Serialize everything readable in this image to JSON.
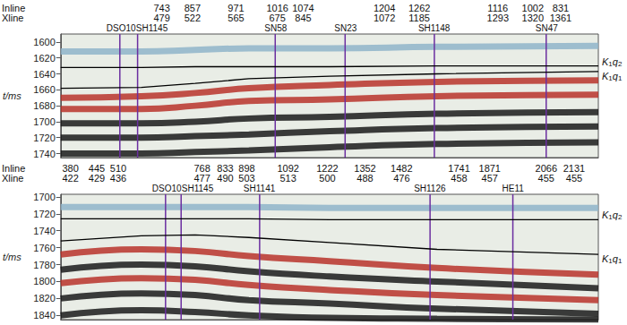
{
  "chart_data": [
    {
      "type": "seismic_section",
      "y_label": "t/ms",
      "xlim": [
        0,
        100
      ],
      "ylim": [
        1590,
        1745
      ],
      "yticks": [
        1600,
        1620,
        1640,
        1660,
        1680,
        1700,
        1720,
        1740
      ],
      "tick_labels": "y",
      "header_rows": [
        "Inline",
        "Xline"
      ],
      "columns": [
        {
          "x": 18.8,
          "values": [
            743,
            479
          ]
        },
        {
          "x": 24.5,
          "values": [
            857,
            522
          ]
        },
        {
          "x": 32.6,
          "values": [
            971,
            565
          ]
        },
        {
          "x": 40.3,
          "values": [
            1016,
            675
          ]
        },
        {
          "x": 45.1,
          "values": [
            1074,
            845
          ]
        },
        {
          "x": 60.2,
          "values": [
            1204,
            1072
          ]
        },
        {
          "x": 66.7,
          "values": [
            1262,
            1185
          ]
        },
        {
          "x": 81.3,
          "values": [
            1116,
            1293
          ]
        },
        {
          "x": 87.8,
          "values": [
            1002,
            1320
          ]
        },
        {
          "x": 93.0,
          "values": [
            831,
            1361
          ]
        }
      ],
      "wells": [
        {
          "name": "DSO10",
          "x": 11.0
        },
        {
          "name": "SH1145",
          "x": 14.3
        },
        {
          "name": "SN58",
          "x": 39.9
        },
        {
          "name": "SN23",
          "x": 52.9
        },
        {
          "name": "SH1148",
          "x": 69.5
        },
        {
          "name": "SN47",
          "x": 90.3
        }
      ],
      "horizon_x": [
        0,
        15,
        25,
        35,
        50,
        70,
        100
      ],
      "horizons": [
        {
          "name": "K1q2",
          "color": "#000000",
          "values": [
            1632,
            1632,
            1631,
            1631,
            1631,
            1630,
            1630
          ]
        },
        {
          "name": "K1q1",
          "color": "#000000",
          "values": [
            1658,
            1657,
            1652,
            1646,
            1643,
            1640,
            1637
          ]
        }
      ],
      "reflectors": [
        {
          "color": "#8fb4c9",
          "values": [
            1612,
            1612,
            1610,
            1608,
            1608,
            1606,
            1605
          ]
        },
        {
          "color": "#b8322a",
          "values": [
            1670,
            1668,
            1664,
            1658,
            1654,
            1650,
            1648
          ]
        },
        {
          "color": "#b8322a",
          "values": [
            1684,
            1684,
            1680,
            1674,
            1672,
            1668,
            1666
          ]
        },
        {
          "color": "#1a1a1a",
          "values": [
            1702,
            1702,
            1700,
            1696,
            1694,
            1690,
            1688
          ]
        },
        {
          "color": "#1a1a1a",
          "values": [
            1720,
            1720,
            1718,
            1716,
            1712,
            1708,
            1706
          ]
        },
        {
          "color": "#1a1a1a",
          "values": [
            1740,
            1740,
            1738,
            1736,
            1732,
            1728,
            1726
          ]
        }
      ]
    },
    {
      "type": "seismic_section",
      "y_label": "t/ms",
      "xlim": [
        0,
        100
      ],
      "ylim": [
        1697,
        1845
      ],
      "yticks": [
        1700,
        1720,
        1740,
        1760,
        1780,
        1800,
        1820,
        1840
      ],
      "tick_labels": "y",
      "header_rows": [
        "Inline",
        "Xline"
      ],
      "columns": [
        {
          "x": 1.8,
          "values": [
            380,
            422
          ]
        },
        {
          "x": 6.7,
          "values": [
            445,
            429
          ]
        },
        {
          "x": 10.7,
          "values": [
            510,
            436
          ]
        },
        {
          "x": 26.3,
          "values": [
            768,
            477
          ]
        },
        {
          "x": 30.6,
          "values": [
            833,
            490
          ]
        },
        {
          "x": 34.6,
          "values": [
            898,
            503
          ]
        },
        {
          "x": 42.3,
          "values": [
            1092,
            513
          ]
        },
        {
          "x": 49.6,
          "values": [
            1222,
            500
          ]
        },
        {
          "x": 56.6,
          "values": [
            1352,
            488
          ]
        },
        {
          "x": 63.4,
          "values": [
            1482,
            476
          ]
        },
        {
          "x": 74.1,
          "values": [
            1741,
            458
          ]
        },
        {
          "x": 79.8,
          "values": [
            1871,
            457
          ]
        },
        {
          "x": 90.3,
          "values": [
            2066,
            455
          ]
        },
        {
          "x": 95.5,
          "values": [
            2131,
            455
          ]
        }
      ],
      "wells": [
        {
          "name": "DSO10",
          "x": 19.5
        },
        {
          "name": "SH1145",
          "x": 22.4
        },
        {
          "name": "SH1141",
          "x": 37.0
        },
        {
          "name": "SH1126",
          "x": 68.7
        },
        {
          "name": "HE11",
          "x": 84.1
        }
      ],
      "horizon_x": [
        0,
        15,
        25,
        35,
        50,
        70,
        100
      ],
      "horizons": [
        {
          "name": "K1q2",
          "color": "#000000",
          "values": [
            1726,
            1726,
            1726,
            1726,
            1727,
            1727,
            1727
          ]
        },
        {
          "name": "K1q1",
          "color": "#000000",
          "values": [
            1752,
            1746,
            1745,
            1748,
            1754,
            1762,
            1768
          ]
        }
      ],
      "reflectors": [
        {
          "color": "#8fb4c9",
          "values": [
            1712,
            1712,
            1712,
            1712,
            1713,
            1713,
            1713
          ]
        },
        {
          "color": "#b8322a",
          "values": [
            1768,
            1762,
            1764,
            1770,
            1776,
            1784,
            1792
          ]
        },
        {
          "color": "#1a1a1a",
          "values": [
            1786,
            1780,
            1782,
            1788,
            1794,
            1800,
            1808
          ]
        },
        {
          "color": "#b8322a",
          "values": [
            1802,
            1796,
            1798,
            1804,
            1810,
            1816,
            1822
          ]
        },
        {
          "color": "#1a1a1a",
          "values": [
            1820,
            1814,
            1816,
            1822,
            1826,
            1832,
            1838
          ]
        },
        {
          "color": "#1a1a1a",
          "values": [
            1840,
            1834,
            1836,
            1840,
            1843,
            1844,
            1845
          ]
        }
      ]
    }
  ]
}
